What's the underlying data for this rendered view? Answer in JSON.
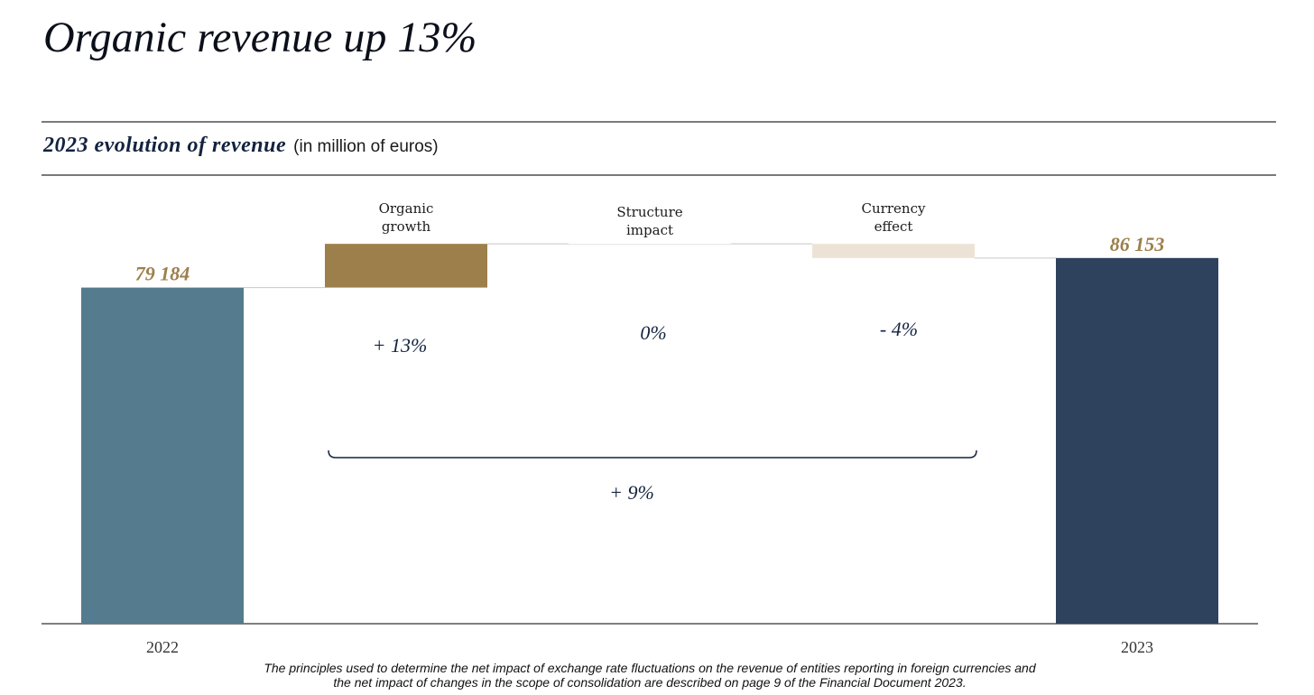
{
  "page": {
    "title": "Organic revenue up 13%",
    "subtitle": "2023 evolution of revenue",
    "unit_note": "(in million of euros)",
    "footnote_line1": "The principles used to determine the net impact of exchange rate fluctuations on the revenue of entities reporting in foreign currencies and",
    "footnote_line2": "the net impact of changes in the scope of consolidation are described on page 9 of the Financial Document 2023."
  },
  "colors": {
    "start_bar": "#557b8e",
    "end_bar": "#2e425d",
    "organic": "#9c7f4b",
    "structure": "#e6e6e6",
    "currency": "#ece3d6",
    "value_label": "#9c7f4b",
    "pct_label": "#13233f",
    "bracket": "#13233f"
  },
  "chart_data": {
    "type": "bar",
    "subtype": "waterfall",
    "ylim": [
      0,
      101000
    ],
    "categories": [
      "2022",
      "Organic growth",
      "Structure impact",
      "Currency effect",
      "2023"
    ],
    "start": {
      "label": "2022",
      "value": 79184,
      "value_label": "79 184"
    },
    "end": {
      "label": "2023",
      "value": 86153,
      "value_label": "86 153"
    },
    "steps": [
      {
        "label_lines": [
          "Organic",
          "growth"
        ],
        "pct_label": "+ 13%",
        "value": 10300
      },
      {
        "label_lines": [
          "Structure",
          "impact"
        ],
        "pct_label": "0%",
        "value": 0
      },
      {
        "label_lines": [
          "Currency",
          "effect"
        ],
        "pct_label": "- 4%",
        "value": -3331
      }
    ],
    "total_change_label": "+ 9%",
    "grid": false
  }
}
